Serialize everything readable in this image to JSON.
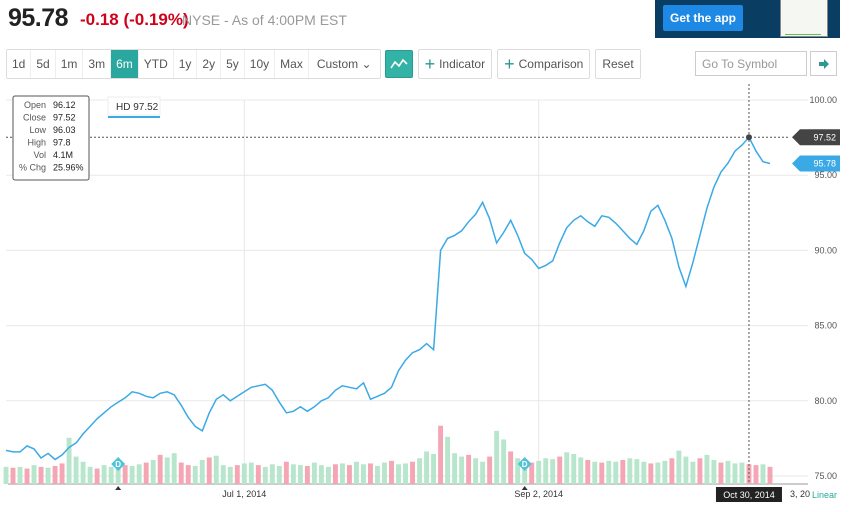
{
  "quote": {
    "price": "95.78",
    "change": "-0.18 (-0.19%)",
    "exchange_info": "NYSE - As of 4:00PM EST"
  },
  "ad": {
    "button_label": "Get the app"
  },
  "ranges": [
    "1d",
    "5d",
    "1m",
    "3m",
    "6m",
    "YTD",
    "1y",
    "2y",
    "5y",
    "10y",
    "Max"
  ],
  "active_range": "6m",
  "custom_label": "Custom",
  "toolbar": {
    "indicator_label": "Indicator",
    "comparison_label": "Comparison",
    "reset_label": "Reset"
  },
  "search": {
    "placeholder": "Go To Symbol"
  },
  "colors": {
    "line": "#3ba9e6",
    "up_volume": "#b8e6cc",
    "down_volume": "#f5a6b4",
    "accent": "#2aa8a0",
    "negative": "#d0021b"
  },
  "tooltip": {
    "rows": [
      {
        "label": "Open",
        "value": "96.12"
      },
      {
        "label": "Close",
        "value": "97.52"
      },
      {
        "label": "Low",
        "value": "96.03"
      },
      {
        "label": "High",
        "value": "97.8"
      },
      {
        "label": "Vol",
        "value": "4.1M"
      },
      {
        "label": "% Chg",
        "value": "25.96%"
      }
    ]
  },
  "legend_label": "HD 97.52",
  "crosshair": {
    "date_label": "Oct 30, 2014",
    "price_label": "97.52"
  },
  "last_price_label": "95.78",
  "scale_label": "Linear",
  "x_tail_label": "3, 20",
  "chart_data": {
    "type": "line",
    "y_ticks": [
      "100.00",
      "95.00",
      "90.00",
      "85.00",
      "80.00",
      "75.00"
    ],
    "ylim": [
      75,
      100
    ],
    "x_ticks": [
      {
        "label": "Jul 1, 2014",
        "index": 34
      },
      {
        "label": "Sep 2, 2014",
        "index": 76
      }
    ],
    "events": [
      {
        "label": "D",
        "index": 16
      },
      {
        "label": "D",
        "index": 74
      }
    ],
    "series": [
      {
        "name": "HD",
        "values": [
          76.7,
          76.6,
          76.6,
          77.0,
          76.8,
          76.2,
          76.5,
          76.1,
          76.4,
          76.9,
          77.2,
          77.8,
          78.3,
          78.8,
          79.2,
          79.6,
          79.9,
          80.2,
          80.6,
          80.5,
          80.3,
          80.2,
          80.5,
          80.6,
          80.4,
          79.7,
          78.9,
          78.3,
          78.0,
          79.2,
          80.1,
          80.4,
          80.0,
          80.3,
          80.6,
          80.9,
          81.0,
          81.1,
          80.7,
          79.9,
          79.2,
          79.3,
          79.6,
          79.3,
          79.6,
          80.0,
          80.2,
          80.7,
          81.0,
          80.9,
          80.8,
          81.2,
          80.1,
          80.3,
          80.5,
          80.9,
          82.0,
          82.7,
          83.2,
          83.4,
          83.8,
          83.4,
          90.0,
          90.8,
          91.0,
          91.3,
          91.9,
          92.4,
          93.2,
          92.1,
          90.5,
          91.2,
          92.0,
          91.0,
          89.8,
          89.4,
          88.8,
          89.0,
          89.3,
          90.5,
          91.5,
          92.0,
          92.3,
          91.9,
          91.6,
          92.3,
          92.2,
          91.8,
          91.3,
          90.8,
          90.4,
          91.3,
          92.6,
          93.0,
          92.0,
          90.8,
          88.9,
          87.6,
          89.2,
          91.0,
          92.8,
          94.2,
          95.2,
          95.8,
          96.6,
          97.0,
          97.52,
          96.6,
          95.9,
          95.78
        ],
        "volume_up": [
          1,
          0,
          1,
          0,
          1,
          0,
          1,
          0,
          0,
          1,
          1,
          1,
          1,
          0,
          1,
          1,
          1,
          0,
          1,
          1,
          0,
          1,
          0,
          1,
          1,
          0,
          0,
          1,
          1,
          0,
          1,
          1,
          1,
          0,
          1,
          1,
          0,
          1,
          1,
          1,
          0,
          1,
          1,
          0,
          1,
          1,
          1,
          0,
          1,
          0,
          1,
          1,
          0,
          1,
          1,
          0,
          1,
          1,
          0,
          1,
          1,
          1,
          0,
          1,
          1,
          1,
          0,
          1,
          1,
          0,
          1,
          1,
          0,
          1,
          1,
          0,
          1,
          1,
          1,
          0,
          1,
          1,
          1,
          0,
          1,
          0,
          1,
          1,
          0,
          1,
          1,
          1,
          0,
          1,
          1,
          0,
          1,
          1,
          1,
          0,
          1,
          1,
          0,
          1,
          1,
          1,
          0,
          0,
          1,
          0
        ],
        "volume": [
          2.0,
          1.9,
          2.0,
          1.8,
          2.2,
          2.0,
          1.9,
          2.1,
          2.4,
          5.4,
          3.2,
          2.6,
          2.0,
          1.8,
          2.2,
          2.0,
          2.4,
          2.2,
          2.1,
          2.3,
          2.5,
          2.8,
          3.4,
          3.1,
          3.6,
          2.5,
          2.2,
          2.1,
          2.8,
          3.1,
          3.3,
          2.2,
          2.0,
          2.2,
          2.4,
          2.5,
          2.2,
          2.0,
          2.3,
          2.1,
          2.6,
          2.3,
          2.2,
          2.1,
          2.5,
          2.2,
          2.0,
          2.3,
          2.4,
          2.2,
          2.6,
          2.3,
          2.4,
          2.1,
          2.5,
          2.7,
          2.3,
          2.4,
          2.6,
          3.0,
          3.8,
          3.5,
          6.8,
          5.5,
          3.6,
          3.2,
          3.4,
          3.0,
          2.6,
          3.2,
          6.2,
          5.2,
          3.8,
          3.0,
          2.6,
          2.5,
          2.7,
          3.0,
          2.9,
          3.2,
          3.7,
          3.5,
          3.1,
          2.8,
          2.6,
          2.5,
          2.7,
          2.6,
          2.8,
          3.0,
          2.9,
          2.6,
          2.4,
          2.5,
          2.7,
          3.0,
          3.9,
          3.2,
          2.6,
          3.0,
          3.4,
          2.8,
          2.5,
          2.7,
          2.4,
          2.5,
          2.3,
          2.2,
          2.3,
          2.0
        ]
      }
    ]
  }
}
